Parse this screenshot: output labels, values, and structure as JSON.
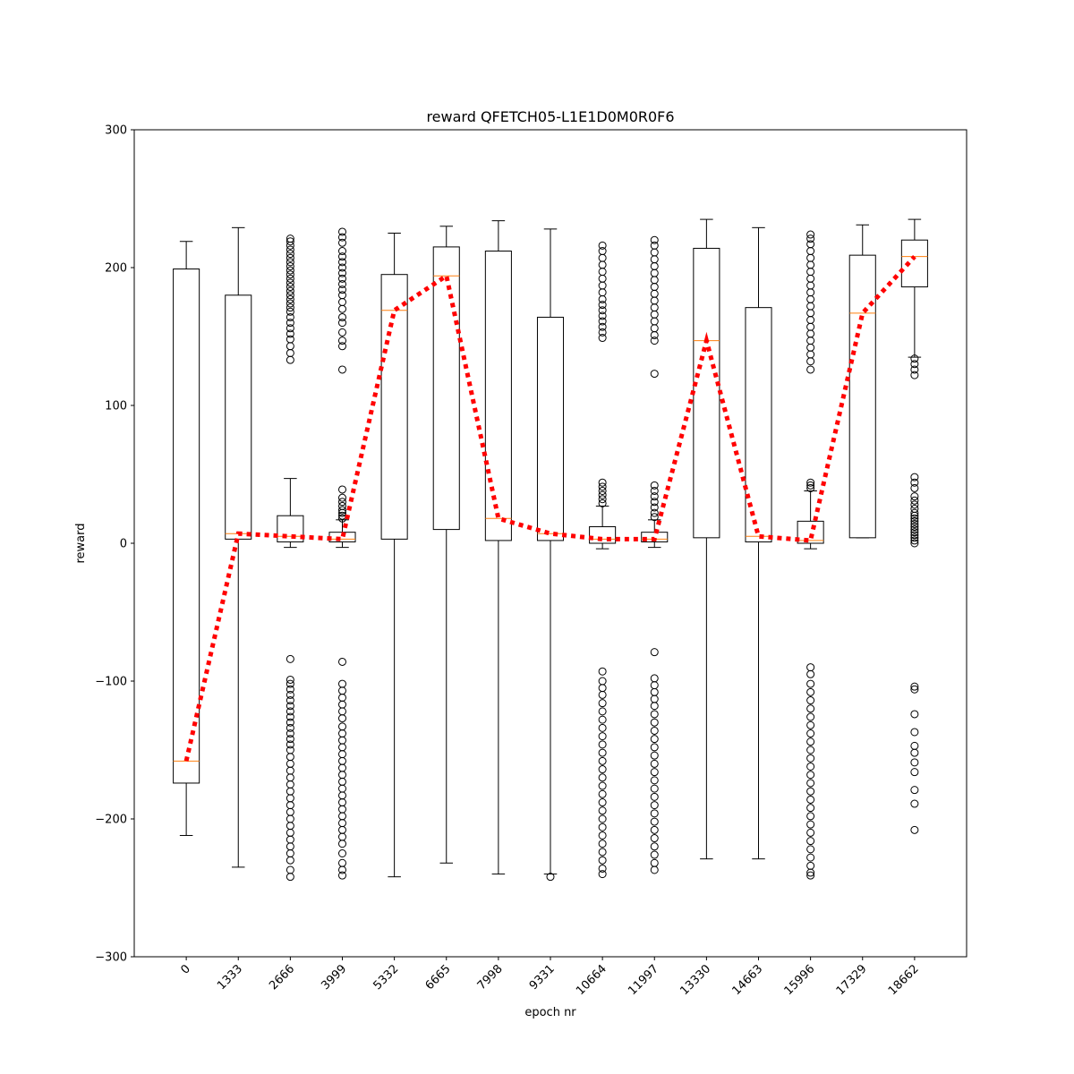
{
  "chart_data": {
    "type": "box",
    "title": "reward QFETCH05-L1E1D0M0R0F6",
    "xlabel": "epoch nr",
    "ylabel": "reward",
    "ylim": [
      -300,
      300
    ],
    "yticks": [
      -300,
      -200,
      -100,
      0,
      100,
      200,
      300
    ],
    "grid": false,
    "categories": [
      "0",
      "1333",
      "2666",
      "3999",
      "5332",
      "6665",
      "7998",
      "9331",
      "10664",
      "11997",
      "13330",
      "14663",
      "15996",
      "17329",
      "18662"
    ],
    "boxes": [
      {
        "whislo": -212,
        "q1": -174,
        "med": -158,
        "q3": 199,
        "whishi": 219,
        "fliers_high": [],
        "fliers_low": []
      },
      {
        "whislo": -235,
        "q1": 3,
        "med": 7,
        "q3": 180,
        "whishi": 229,
        "fliers_high": [],
        "fliers_low": []
      },
      {
        "whislo": -3,
        "q1": 1,
        "med": 5,
        "q3": 20,
        "whishi": 47,
        "fliers_high": [
          133,
          138,
          143,
          148,
          152,
          156,
          160,
          164,
          168,
          171,
          174,
          177,
          180,
          183,
          186,
          189,
          192,
          195,
          198,
          201,
          204,
          207,
          210,
          213,
          216,
          219,
          221
        ],
        "fliers_low": [
          -84,
          -99,
          -102,
          -106,
          -110,
          -114,
          -118,
          -122,
          -126,
          -130,
          -134,
          -138,
          -142,
          -146,
          -150,
          -155,
          -160,
          -165,
          -170,
          -175,
          -180,
          -185,
          -190,
          -195,
          -200,
          -205,
          -210,
          -215,
          -220,
          -225,
          -230,
          -237,
          -242
        ]
      },
      {
        "whislo": -3,
        "q1": 1,
        "med": 3,
        "q3": 8,
        "whishi": 17,
        "fliers_high": [
          18,
          20,
          22,
          24,
          27,
          30,
          33,
          39,
          126,
          143,
          147,
          153,
          160,
          164,
          170,
          175,
          180,
          184,
          188,
          192,
          196,
          200,
          204,
          208,
          212,
          218,
          222,
          226
        ],
        "fliers_low": [
          -86,
          -102,
          -107,
          -112,
          -117,
          -122,
          -127,
          -133,
          -138,
          -143,
          -148,
          -153,
          -158,
          -163,
          -168,
          -173,
          -178,
          -183,
          -188,
          -193,
          -198,
          -203,
          -208,
          -213,
          -218,
          -225,
          -232,
          -237,
          -241
        ]
      },
      {
        "whislo": -242,
        "q1": 3,
        "med": 169,
        "q3": 195,
        "whishi": 225,
        "fliers_high": [],
        "fliers_low": []
      },
      {
        "whislo": -232,
        "q1": 10,
        "med": 194,
        "q3": 215,
        "whishi": 230,
        "fliers_high": [],
        "fliers_low": []
      },
      {
        "whislo": -240,
        "q1": 2,
        "med": 18,
        "q3": 212,
        "whishi": 234,
        "fliers_high": [],
        "fliers_low": []
      },
      {
        "whislo": -240,
        "q1": 2,
        "med": 7,
        "q3": 164,
        "whishi": 228,
        "fliers_high": [],
        "fliers_low": [
          -242
        ]
      },
      {
        "whislo": -4,
        "q1": 0,
        "med": 3,
        "q3": 12,
        "whishi": 27,
        "fliers_high": [
          29,
          32,
          35,
          38,
          41,
          44,
          149,
          153,
          157,
          161,
          165,
          169,
          173,
          177,
          182,
          187,
          192,
          197,
          202,
          207,
          212,
          216
        ],
        "fliers_low": [
          -93,
          -100,
          -105,
          -110,
          -116,
          -122,
          -128,
          -134,
          -140,
          -146,
          -152,
          -158,
          -164,
          -170,
          -176,
          -182,
          -188,
          -194,
          -200,
          -206,
          -212,
          -218,
          -224,
          -230,
          -236,
          -240
        ]
      },
      {
        "whislo": -3,
        "q1": 1,
        "med": 3,
        "q3": 8,
        "whishi": 17,
        "fliers_high": [
          19,
          22,
          26,
          30,
          34,
          38,
          42,
          123,
          147,
          151,
          156,
          161,
          166,
          171,
          176,
          181,
          186,
          191,
          196,
          201,
          206,
          211,
          216,
          220
        ],
        "fliers_low": [
          -79,
          -98,
          -103,
          -108,
          -113,
          -118,
          -124,
          -130,
          -136,
          -142,
          -148,
          -154,
          -160,
          -166,
          -172,
          -178,
          -184,
          -190,
          -196,
          -202,
          -208,
          -214,
          -220,
          -226,
          -232,
          -237
        ]
      },
      {
        "whislo": -229,
        "q1": 4,
        "med": 147,
        "q3": 214,
        "whishi": 235,
        "fliers_high": [],
        "fliers_low": []
      },
      {
        "whislo": -229,
        "q1": 1,
        "med": 5,
        "q3": 171,
        "whishi": 229,
        "fliers_high": [],
        "fliers_low": []
      },
      {
        "whislo": -4,
        "q1": 0,
        "med": 2,
        "q3": 16,
        "whishi": 38,
        "fliers_high": [
          40,
          42,
          44,
          126,
          132,
          137,
          142,
          147,
          152,
          157,
          162,
          167,
          172,
          177,
          182,
          187,
          192,
          197,
          202,
          207,
          212,
          217,
          221,
          224
        ],
        "fliers_low": [
          -90,
          -95,
          -102,
          -108,
          -114,
          -120,
          -126,
          -132,
          -138,
          -144,
          -150,
          -156,
          -162,
          -168,
          -174,
          -180,
          -186,
          -192,
          -198,
          -204,
          -210,
          -216,
          -222,
          -228,
          -234,
          -239,
          -241
        ]
      },
      {
        "whislo": 4,
        "q1": 4,
        "med": 167,
        "q3": 209,
        "whishi": 231,
        "fliers_high": [],
        "fliers_low": []
      },
      {
        "whislo": 135,
        "q1": 186,
        "med": 208,
        "q3": 220,
        "whishi": 235,
        "fliers_high": [],
        "fliers_low": [
          0,
          2,
          4,
          6,
          8,
          10,
          12,
          14,
          16,
          18,
          20,
          22,
          25,
          28,
          31,
          34,
          40,
          44,
          48,
          122,
          126,
          130,
          134,
          -104,
          -106,
          -124,
          -137,
          -147,
          -152,
          -159,
          -166,
          -179,
          -189,
          -208
        ]
      }
    ],
    "median_line": {
      "values": [
        -158,
        7,
        5,
        3,
        169,
        194,
        18,
        7,
        3,
        3,
        147,
        5,
        2,
        167,
        208
      ],
      "color": "#ff0000",
      "style": "dotted"
    },
    "colors": {
      "box": "#000000",
      "median": "#ff7f0e",
      "median_line": "#ff0000"
    }
  }
}
